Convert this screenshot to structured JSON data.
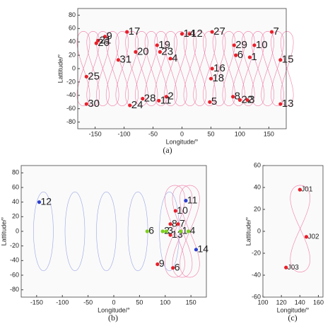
{
  "chart_data": [
    {
      "type": "scatter",
      "caption": "(a)",
      "x_label": "Longitude/°",
      "y_label": "Lattitude/°",
      "xlim": [
        -180,
        180
      ],
      "ylim": [
        -90,
        90
      ],
      "xticks": [
        -150,
        -100,
        -50,
        0,
        50,
        100,
        150
      ],
      "yticks": [
        -80,
        -60,
        -40,
        -20,
        0,
        20,
        40,
        60,
        80
      ],
      "labels": [
        "1",
        "2",
        "3",
        "4",
        "5",
        "6",
        "7",
        "8",
        "9",
        "10",
        "11",
        "12",
        "13",
        "14",
        "15",
        "16",
        "17",
        "18",
        "19",
        "20",
        "21",
        "22",
        "23",
        "24",
        "25",
        "26",
        "27",
        "28",
        "29",
        "30",
        "31"
      ],
      "x": [
        117,
        -27,
        113,
        -20,
        48,
        93,
        155,
        88,
        -133,
        125,
        -40,
        13,
        170,
        0,
        170,
        52,
        -95,
        50,
        -43,
        -80,
        -145,
        100,
        -38,
        -90,
        -165,
        -148,
        52,
        -68,
        90,
        -165,
        -110
      ],
      "values": [
        17,
        -42,
        -47,
        15,
        -50,
        20,
        55,
        -42,
        48,
        35,
        -48,
        52,
        -53,
        52,
        13,
        0,
        55,
        -15,
        35,
        25,
        42,
        -47,
        25,
        -55,
        -12,
        38,
        55,
        -45,
        35,
        -53,
        13
      ],
      "marker_color": "#e8202a",
      "label_colors": [
        "#2b3fcf"
      ]
    },
    {
      "type": "scatter",
      "caption": "(b)",
      "x_label": "Longitude/°",
      "y_label": "Lattitude/°",
      "xlim": [
        -180,
        180
      ],
      "ylim": [
        -90,
        90
      ],
      "xticks": [
        -150,
        -100,
        -50,
        0,
        50,
        100,
        150
      ],
      "yticks": [
        -80,
        -60,
        -40,
        -20,
        0,
        20,
        40,
        60,
        80
      ],
      "labels": [
        "12",
        "11",
        "14",
        "10",
        "8",
        "7",
        "13",
        "9",
        "6",
        "6",
        "2",
        "3",
        "1",
        "4"
      ],
      "x": [
        -145,
        140,
        160,
        120,
        110,
        125,
        110,
        85,
        115,
        65,
        95,
        102,
        130,
        145
      ],
      "values": [
        40,
        42,
        -25,
        28,
        10,
        10,
        -5,
        -45,
        -50,
        0,
        0,
        0,
        0,
        0
      ],
      "marker_colors": [
        "#2b3fcf",
        "#2b3fcf",
        "#2b3fcf",
        "#e8202a",
        "#e8202a",
        "#e8202a",
        "#e8202a",
        "#e8202a",
        "#e8202a",
        "#7ccf1e",
        "#7ccf1e",
        "#7ccf1e",
        "#7ccf1e",
        "#7ccf1e"
      ],
      "label_colors": [
        "#2b3fcf",
        "#2b3fcf",
        "#2b3fcf",
        "#e8202a",
        "#e8202a",
        "#e8202a",
        "#e8202a",
        "#e8202a",
        "#e8202a",
        "#7ccf1e",
        "#7ccf1e",
        "#7ccf1e",
        "#7ccf1e",
        "#7ccf1e"
      ]
    },
    {
      "type": "scatter",
      "caption": "(c)",
      "x_label": "Longitude/°",
      "y_label": "Lattitude/°",
      "xlim": [
        100,
        165
      ],
      "ylim": [
        -60,
        60
      ],
      "xticks": [
        100,
        120,
        140,
        160
      ],
      "yticks": [
        -60,
        -40,
        -20,
        0,
        20,
        40,
        60
      ],
      "labels": [
        "J01",
        "J02",
        "J03"
      ],
      "x": [
        140,
        147,
        125
      ],
      "values": [
        38,
        -5,
        -33
      ],
      "marker_color": "#e8202a",
      "label_colors": [
        "#2b3fcf"
      ]
    }
  ]
}
